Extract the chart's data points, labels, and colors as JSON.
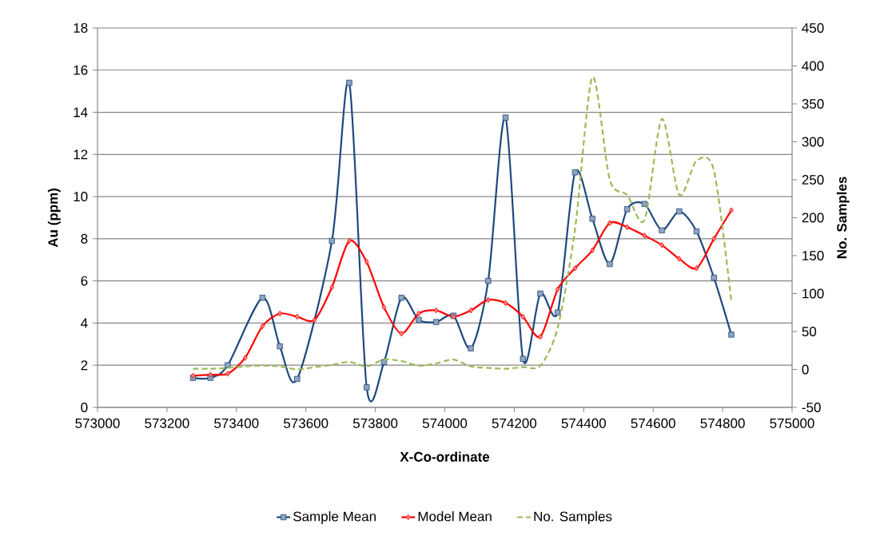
{
  "chart_data": {
    "type": "line",
    "xlabel": "X-Co-ordinate",
    "ylabel": "Au (ppm)",
    "y2label": "No. Samples",
    "xlim": [
      573000,
      575000
    ],
    "xticks": [
      573000,
      573200,
      573400,
      573600,
      573800,
      574000,
      574200,
      574400,
      574600,
      574800,
      575000
    ],
    "ylim": [
      0,
      18
    ],
    "yticks": [
      0,
      2,
      4,
      6,
      8,
      10,
      12,
      14,
      16,
      18
    ],
    "y2lim": [
      -50,
      450
    ],
    "y2ticks": [
      -50,
      0,
      50,
      100,
      150,
      200,
      250,
      300,
      350,
      400,
      450
    ],
    "grid": "y",
    "legend": "bottom",
    "series": [
      {
        "name": "Sample Mean",
        "color": "#1f497d",
        "marker": "square",
        "line_style": "solid",
        "x": [
          573275,
          573325,
          573375,
          573475,
          573525,
          573575,
          573675,
          573725,
          573775,
          573825,
          573875,
          573925,
          573975,
          574025,
          574075,
          574125,
          574175,
          574225,
          574275,
          574325,
          574375,
          574425,
          574475,
          574525,
          574575,
          574625,
          574675,
          574725,
          574775,
          574825
        ],
        "values": [
          1.4,
          1.4,
          2.0,
          5.2,
          2.9,
          1.35,
          7.9,
          15.4,
          0.95,
          2.15,
          5.2,
          4.15,
          4.05,
          4.35,
          2.8,
          6.0,
          13.75,
          2.3,
          5.4,
          4.5,
          11.15,
          8.95,
          6.8,
          9.4,
          9.65,
          8.4,
          9.3,
          8.35,
          6.15,
          3.45
        ]
      },
      {
        "name": "Model Mean",
        "color": "#ff0000",
        "marker": "diamond",
        "line_style": "solid",
        "x": [
          573275,
          573325,
          573375,
          573425,
          573475,
          573525,
          573575,
          573625,
          573675,
          573725,
          573775,
          573825,
          573875,
          573925,
          573975,
          574025,
          574075,
          574125,
          574175,
          574225,
          574275,
          574325,
          574375,
          574425,
          574475,
          574525,
          574575,
          574625,
          574675,
          574725,
          574775,
          574825
        ],
        "values": [
          1.5,
          1.55,
          1.6,
          2.35,
          3.85,
          4.45,
          4.3,
          4.15,
          5.7,
          7.9,
          6.9,
          4.75,
          3.5,
          4.45,
          4.6,
          4.3,
          4.6,
          5.1,
          4.95,
          4.3,
          3.35,
          5.6,
          6.6,
          7.45,
          8.75,
          8.55,
          8.15,
          7.7,
          7.05,
          6.6,
          8.0,
          9.35
        ]
      },
      {
        "name": "No. Samples",
        "color": "#9bbb59",
        "marker": "none",
        "line_style": "dashed",
        "axis": "y2",
        "x": [
          573275,
          573325,
          573375,
          573425,
          573475,
          573525,
          573575,
          573625,
          573675,
          573725,
          573775,
          573825,
          573875,
          573925,
          573975,
          574025,
          574075,
          574125,
          574175,
          574225,
          574275,
          574325,
          574375,
          574425,
          574475,
          574525,
          574575,
          574625,
          574675,
          574725,
          574775,
          574825
        ],
        "values": [
          1,
          1,
          2,
          4,
          5,
          4,
          0,
          3,
          6,
          10,
          4,
          13,
          11,
          5,
          8,
          13,
          4,
          2,
          1,
          3,
          5,
          55,
          185,
          385,
          250,
          230,
          197,
          330,
          230,
          275,
          262,
          90
        ]
      }
    ]
  }
}
